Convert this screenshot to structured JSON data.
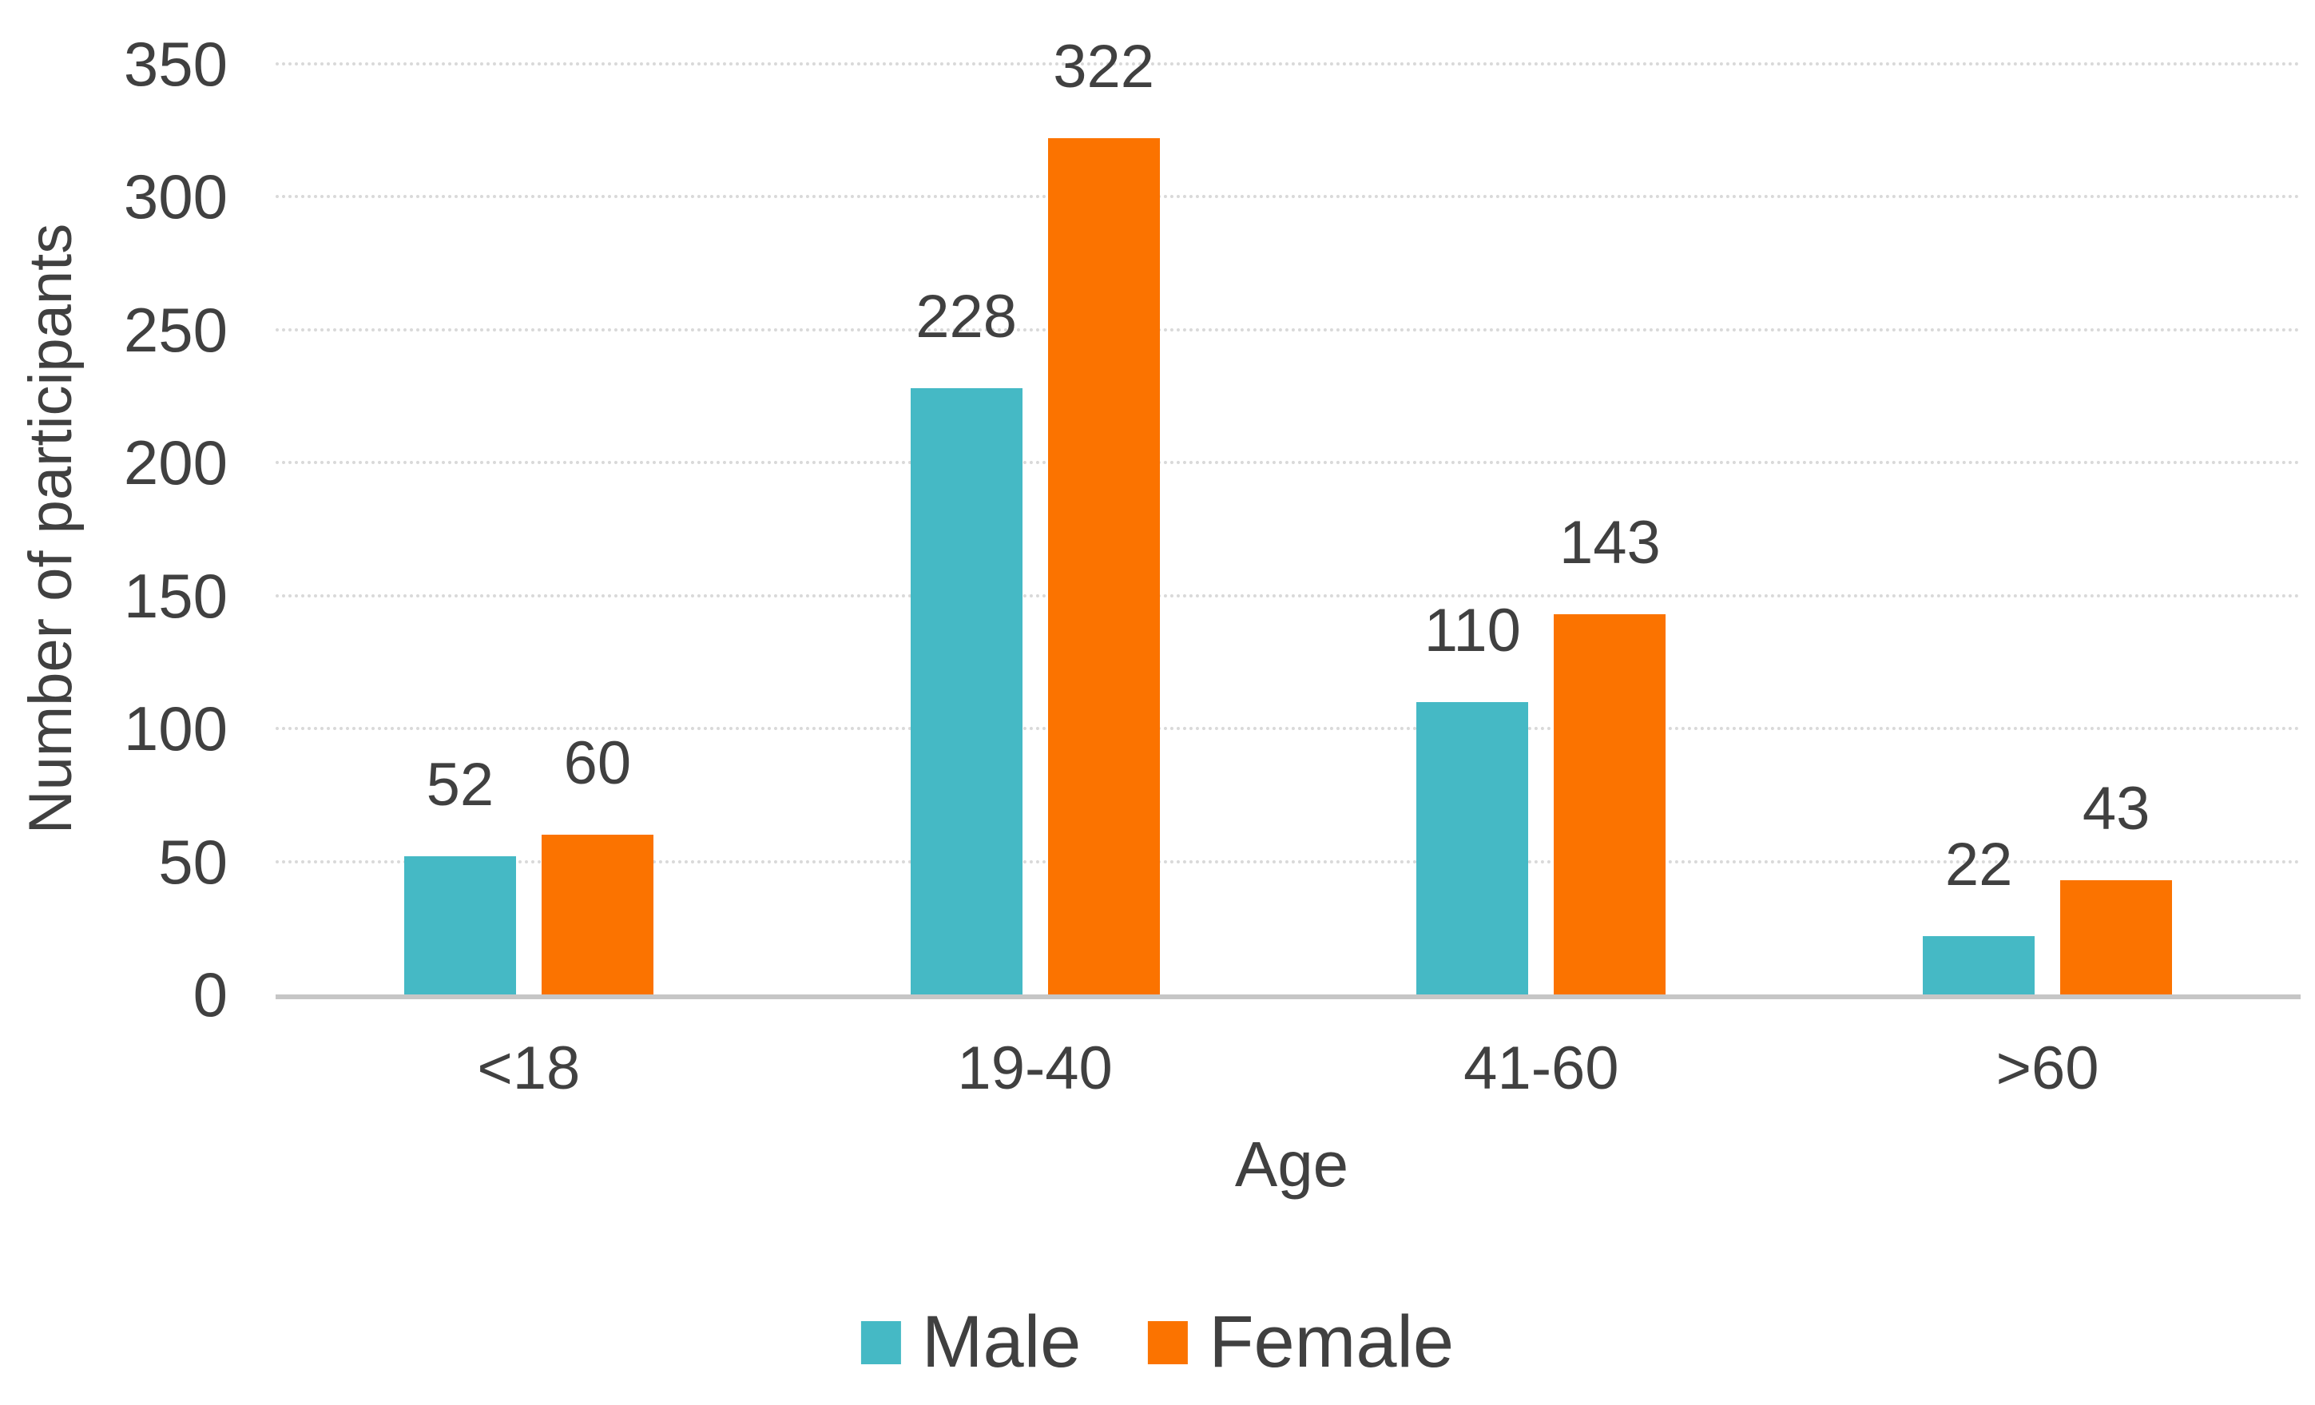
{
  "chart_data": {
    "type": "bar",
    "title": "",
    "categories": [
      "<18",
      "19-40",
      "41-60",
      ">60"
    ],
    "series": [
      {
        "name": "Male",
        "color": "#45B9C5",
        "values": [
          52,
          228,
          110,
          22
        ]
      },
      {
        "name": "Female",
        "color": "#FB7300",
        "values": [
          60,
          322,
          143,
          43
        ]
      }
    ],
    "xlabel": "Age",
    "ylabel": "Number of participants",
    "ylim": [
      0,
      350
    ],
    "yticks": [
      0,
      50,
      100,
      150,
      200,
      250,
      300,
      350
    ],
    "grid": "horizontal dotted gridlines, solid baseline at 0",
    "legend_position": "bottom-center",
    "data_labels": true
  },
  "colors": {
    "male_bar": "#45B9C5",
    "female_bar": "#FB7300",
    "gridline": "#D9D9D9",
    "baseline": "#C6C6C6",
    "text": "#404040",
    "background": "#FFFFFF"
  }
}
